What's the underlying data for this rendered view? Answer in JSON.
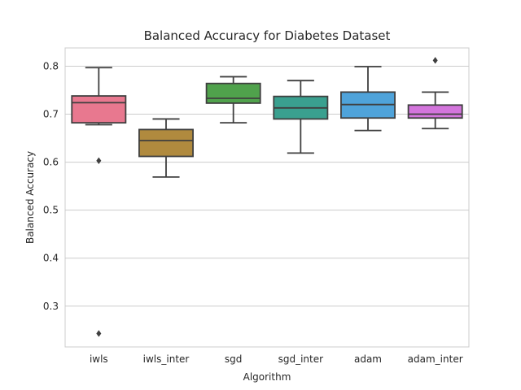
{
  "chart_data": {
    "type": "box",
    "title": "Balanced Accuracy for Diabetes Dataset",
    "xlabel": "Algorithm",
    "ylabel": "Balanced Accuracy",
    "ylim": [
      0.215,
      0.838
    ],
    "yticks": [
      0.3,
      0.4,
      0.5,
      0.6,
      0.7,
      0.8
    ],
    "grid": true,
    "categories": [
      "iwls",
      "iwls_inter",
      "sgd",
      "sgd_inter",
      "adam",
      "adam_inter"
    ],
    "boxes": [
      {
        "category": "iwls",
        "whisker_low": 0.678,
        "q1": 0.682,
        "median": 0.724,
        "q3": 0.738,
        "whisker_high": 0.797,
        "outliers": [
          0.603,
          0.243
        ],
        "color": "#e8788f"
      },
      {
        "category": "iwls_inter",
        "whisker_low": 0.569,
        "q1": 0.612,
        "median": 0.645,
        "q3": 0.668,
        "whisker_high": 0.69,
        "outliers": [],
        "color": "#b08a3e"
      },
      {
        "category": "sgd",
        "whisker_low": 0.682,
        "q1": 0.723,
        "median": 0.733,
        "q3": 0.764,
        "whisker_high": 0.778,
        "outliers": [],
        "color": "#50a24c"
      },
      {
        "category": "sgd_inter",
        "whisker_low": 0.619,
        "q1": 0.69,
        "median": 0.713,
        "q3": 0.737,
        "whisker_high": 0.77,
        "outliers": [],
        "color": "#3aa08f"
      },
      {
        "category": "adam",
        "whisker_low": 0.666,
        "q1": 0.692,
        "median": 0.72,
        "q3": 0.746,
        "whisker_high": 0.799,
        "outliers": [],
        "color": "#4fa3da"
      },
      {
        "category": "adam_inter",
        "whisker_low": 0.67,
        "q1": 0.692,
        "median": 0.7,
        "q3": 0.719,
        "whisker_high": 0.746,
        "outliers": [
          0.812
        ],
        "color": "#d375dc"
      }
    ]
  }
}
